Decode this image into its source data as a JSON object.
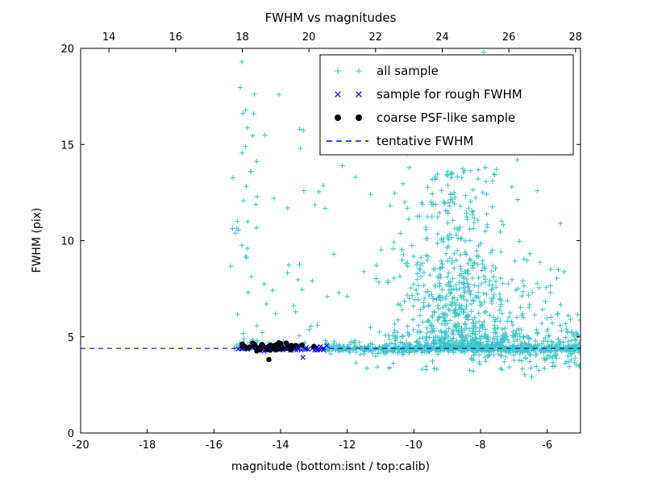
{
  "chart_data": {
    "type": "scatter",
    "title": "FWHM vs magnitudes",
    "xlabel": "magnitude (bottom:isnt / top:calib)",
    "ylabel": "FWHM (pix)",
    "xlim": [
      -20,
      -5
    ],
    "ylim": [
      0,
      20
    ],
    "x_ticks": [
      -20,
      -18,
      -16,
      -14,
      -12,
      -10,
      -8,
      -6
    ],
    "y_ticks": [
      0,
      5,
      10,
      15,
      20
    ],
    "top_axis_ticks": [
      14,
      16,
      18,
      20,
      22,
      24,
      26,
      28
    ],
    "top_axis_offset": 33.15,
    "grid": false,
    "legend_position": "upper right",
    "line": {
      "name": "tentative FWHM",
      "y": 4.4,
      "color": "#0000FF",
      "style": "dashed"
    },
    "series": [
      {
        "name": "all sample",
        "marker": "plus",
        "color": "#3EC6C6",
        "seed": 12345,
        "clusters": [
          {
            "count": 55,
            "x": {
              "type": "uniform",
              "a": -15.5,
              "b": -14.7
            },
            "y": {
              "type": "pow",
              "min": 4.4,
              "max": 19.0,
              "k": 3.2
            }
          },
          {
            "count": 30,
            "x": {
              "type": "uniform",
              "a": -14.7,
              "b": -12.6
            },
            "y": {
              "type": "pow",
              "min": 4.7,
              "max": 17.0,
              "k": 2.8
            }
          },
          {
            "count": 430,
            "x": {
              "type": "uniform",
              "a": -12.65,
              "b": -5.05
            },
            "y": {
              "type": "normal",
              "mean": 4.38,
              "sd": 0.13
            }
          },
          {
            "count": 140,
            "x": {
              "type": "uniform",
              "a": -8.3,
              "b": -5.0
            },
            "y": {
              "type": "normal",
              "mean": 4.4,
              "sd": 0.55
            }
          },
          {
            "count": 650,
            "x": {
              "type": "normal",
              "mean": -8.8,
              "sd": 0.85,
              "min": -12.5,
              "max": -5.1
            },
            "y": {
              "type": "pow",
              "min": 4.4,
              "max": 13.8,
              "k": 2.6
            }
          },
          {
            "count": 300,
            "x": {
              "type": "normal",
              "mean": -8.6,
              "sd": 1.4,
              "min": -12.6,
              "max": -5.05
            },
            "y": {
              "type": "pow",
              "min": 4.3,
              "max": 9.5,
              "k": 3.0
            }
          },
          {
            "count": 25,
            "x": {
              "type": "uniform",
              "a": -11.8,
              "b": -5.3
            },
            "y": {
              "type": "uniform",
              "a": 3.2,
              "b": 4.05
            }
          },
          {
            "count": 20,
            "x": {
              "type": "uniform",
              "a": -10.6,
              "b": -6.4
            },
            "y": {
              "type": "pow",
              "min": 12.0,
              "max": 19.9,
              "k": 1.6
            }
          },
          {
            "count": 60,
            "x": {
              "type": "uniform",
              "a": -7.2,
              "b": -5.0
            },
            "y": {
              "type": "pow",
              "min": 4.6,
              "max": 9.0,
              "k": 2.2
            }
          }
        ],
        "extra_points": [
          [
            -15.16,
            19.3
          ],
          [
            -14.05,
            17.6
          ],
          [
            -15.05,
            16.8
          ],
          [
            -14.9,
            13.6
          ],
          [
            -14.2,
            12.2
          ],
          [
            -15.3,
            11.0
          ],
          [
            -15.0,
            9.6
          ],
          [
            -13.3,
            12.6
          ],
          [
            -12.15,
            13.9
          ],
          [
            -12.4,
            9.3
          ],
          [
            -13.05,
            7.9
          ],
          [
            -13.55,
            6.3
          ],
          [
            -12.9,
            5.6
          ],
          [
            -11.75,
            13.3
          ],
          [
            -11.3,
            12.4
          ],
          [
            -11.5,
            8.4
          ],
          [
            -12.0,
            7.1
          ],
          [
            -11.15,
            4.0
          ],
          [
            -6.3,
            12.6
          ],
          [
            -5.6,
            10.9
          ],
          [
            -5.9,
            7.3
          ],
          [
            -5.3,
            4.1
          ],
          [
            -7.9,
            19.8
          ],
          [
            -8.6,
            17.5
          ],
          [
            -9.3,
            15.9
          ],
          [
            -6.9,
            14.2
          ]
        ]
      },
      {
        "name": "sample for rough FWHM",
        "marker": "x",
        "color": "#0000FF",
        "seed": 777,
        "clusters": [
          {
            "count": 22,
            "x": {
              "type": "uniform",
              "a": -15.3,
              "b": -14.2
            },
            "y": {
              "type": "normal",
              "mean": 4.43,
              "sd": 0.07
            }
          },
          {
            "count": 45,
            "x": {
              "type": "uniform",
              "a": -14.2,
              "b": -12.6
            },
            "y": {
              "type": "normal",
              "mean": 4.42,
              "sd": 0.08
            }
          }
        ],
        "extra_points": [
          [
            -13.33,
            3.93
          ]
        ]
      },
      {
        "name": "coarse PSF-like sample",
        "marker": "dot",
        "color": "#000000",
        "seed": 999,
        "clusters": [
          {
            "count": 60,
            "x": {
              "type": "normal",
              "mean": -14.25,
              "sd": 0.42,
              "min": -15.15,
              "max": -13.0
            },
            "y": {
              "type": "normal",
              "mean": 4.46,
              "sd": 0.09,
              "min": 4.2,
              "max": 4.75
            }
          }
        ],
        "extra_points": [
          [
            -14.35,
            3.82
          ]
        ]
      }
    ]
  },
  "legend": {
    "items": [
      {
        "label": "all sample",
        "marker": "plus",
        "color": "#3EC6C6"
      },
      {
        "label": "sample for rough FWHM",
        "marker": "x",
        "color": "#0000FF"
      },
      {
        "label": "coarse PSF-like sample",
        "marker": "dot",
        "color": "#000000"
      },
      {
        "label": "tentative FWHM",
        "marker": "dashed-line",
        "color": "#0000FF"
      }
    ]
  }
}
